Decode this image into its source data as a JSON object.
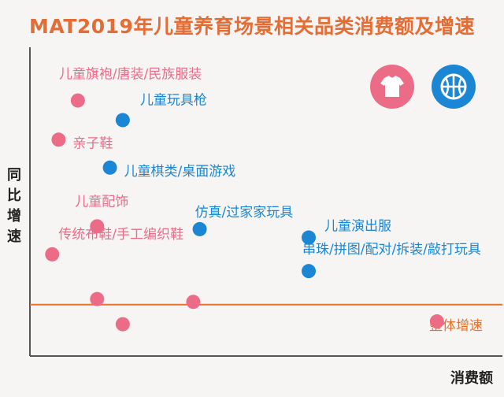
{
  "chart_data": {
    "type": "scatter",
    "title": "MAT2019年儿童养育场景相关品类消费额及增速",
    "xlabel": "消费额",
    "ylabel": "同比增速",
    "grid": false,
    "colors": {
      "pink": "#ec6b87",
      "blue": "#1a86d4",
      "orange": "#e8712e",
      "title": "#e36d35"
    },
    "points": [
      {
        "label": "儿童旗袍/唐装/民族服装",
        "x": 6,
        "y": 88,
        "color": "pink"
      },
      {
        "label": "儿童玩具枪",
        "x": 13,
        "y": 81,
        "color": "blue"
      },
      {
        "label": "亲子鞋",
        "x": 3,
        "y": 74,
        "color": "pink"
      },
      {
        "label": "儿童棋类/桌面游戏",
        "x": 11,
        "y": 64,
        "color": "blue"
      },
      {
        "label": "儿童配饰",
        "x": 9,
        "y": 43,
        "color": "pink"
      },
      {
        "label": "仿真/过家家玩具",
        "x": 25,
        "y": 42,
        "color": "blue"
      },
      {
        "label": "儿童演出服",
        "x": 42,
        "y": 39,
        "color": "blue"
      },
      {
        "label": "传统布鞋/手工编织鞋",
        "x": 2,
        "y": 33,
        "color": "pink"
      },
      {
        "label": "串珠/拼图/配对/拆装/敲打玩具",
        "x": 42,
        "y": 27,
        "color": "blue"
      },
      {
        "label": "",
        "x": 9,
        "y": 17,
        "color": "pink"
      },
      {
        "label": "",
        "x": 24,
        "y": 16,
        "color": "pink"
      },
      {
        "label": "",
        "x": 13,
        "y": 8,
        "color": "pink"
      },
      {
        "label": "",
        "x": 62,
        "y": 9,
        "color": "pink"
      }
    ],
    "reference_line": {
      "label": "整体增速",
      "y": 15,
      "color": "orange"
    },
    "icons": [
      {
        "name": "tshirt-icon",
        "color": "pink"
      },
      {
        "name": "basketball-icon",
        "color": "blue"
      }
    ]
  }
}
